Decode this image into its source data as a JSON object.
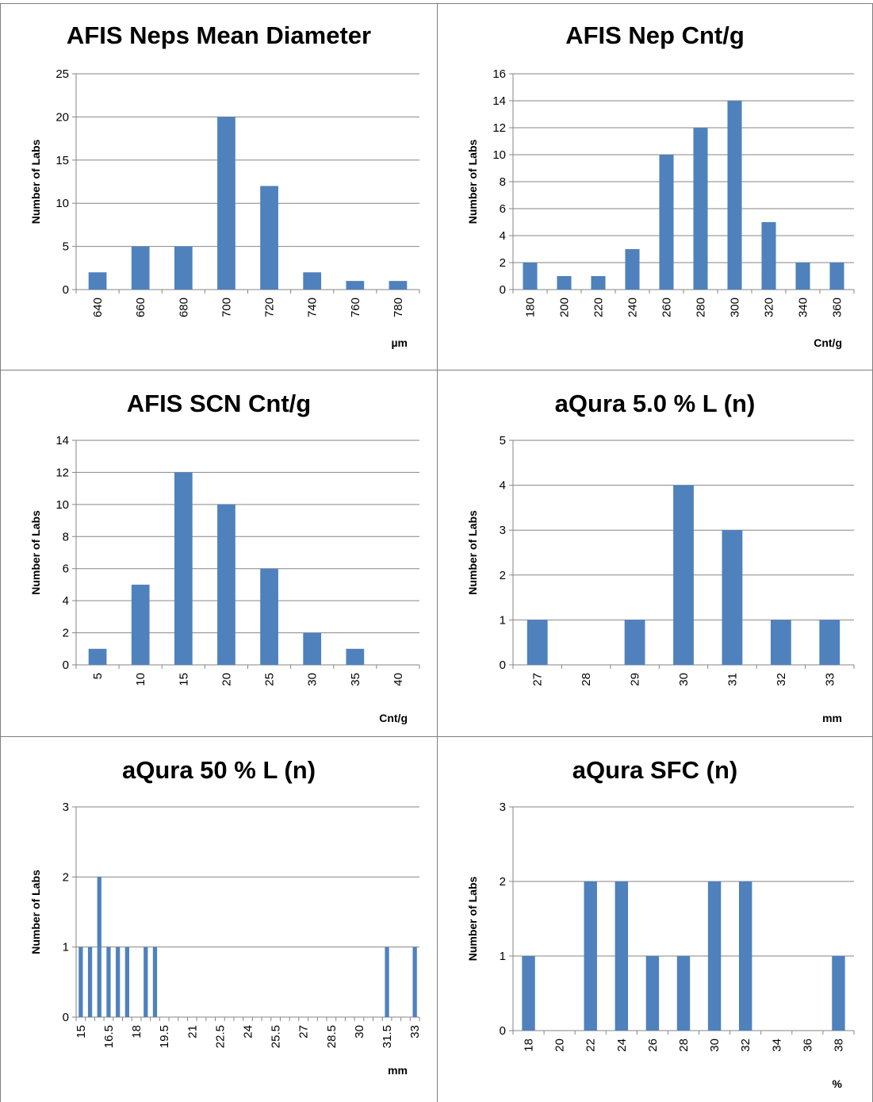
{
  "colors": {
    "bar": "#4f81bd",
    "grid": "#868686",
    "axis": "#868686",
    "frame": "#7f7f7f"
  },
  "chart_data": [
    {
      "type": "bar",
      "title": "AFIS Neps Mean Diameter",
      "ylabel": "Number of Labs",
      "xlabel": "µm",
      "categories": [
        "640",
        "660",
        "680",
        "700",
        "720",
        "740",
        "760",
        "780"
      ],
      "values": [
        2,
        5,
        5,
        20,
        12,
        2,
        1,
        1
      ],
      "ylim": [
        0,
        25
      ],
      "yticks": [
        0,
        5,
        10,
        15,
        20,
        25
      ],
      "grid": true
    },
    {
      "type": "bar",
      "title": "AFIS Nep Cnt/g",
      "ylabel": "Number of Labs",
      "xlabel": "Cnt/g",
      "categories": [
        "180",
        "200",
        "220",
        "240",
        "260",
        "280",
        "300",
        "320",
        "340",
        "360"
      ],
      "values": [
        2,
        1,
        1,
        3,
        10,
        12,
        14,
        5,
        2,
        2
      ],
      "ylim": [
        0,
        16
      ],
      "yticks": [
        0,
        2,
        4,
        6,
        8,
        10,
        12,
        14,
        16
      ],
      "grid": true
    },
    {
      "type": "bar",
      "title": "AFIS SCN Cnt/g",
      "ylabel": "Number of Labs",
      "xlabel": "Cnt/g",
      "categories": [
        "5",
        "10",
        "15",
        "20",
        "25",
        "30",
        "35",
        "40"
      ],
      "values": [
        1,
        5,
        12,
        10,
        6,
        2,
        1,
        0
      ],
      "ylim": [
        0,
        14
      ],
      "yticks": [
        0,
        2,
        4,
        6,
        8,
        10,
        12,
        14
      ],
      "grid": true
    },
    {
      "type": "bar",
      "title": "aQura 5.0 % L (n)",
      "ylabel": "Number of Labs",
      "xlabel": "mm",
      "categories": [
        "27",
        "28",
        "29",
        "30",
        "31",
        "32",
        "33"
      ],
      "values": [
        1,
        0,
        1,
        4,
        3,
        1,
        1
      ],
      "ylim": [
        0,
        5
      ],
      "yticks": [
        0,
        1,
        2,
        3,
        4,
        5
      ],
      "grid": true
    },
    {
      "type": "bar",
      "title": "aQura 50 % L (n)",
      "ylabel": "Number of Labs",
      "xlabel": "mm",
      "categories": [
        "15",
        "15.5",
        "16",
        "16.5",
        "17",
        "17.5",
        "18",
        "18.5",
        "19",
        "19.5",
        "20",
        "20.5",
        "21",
        "21.5",
        "22",
        "22.5",
        "23",
        "23.5",
        "24",
        "24.5",
        "25",
        "25.5",
        "26",
        "26.5",
        "27",
        "27.5",
        "28",
        "28.5",
        "29",
        "29.5",
        "30",
        "30.5",
        "31",
        "31.5",
        "32",
        "32.5",
        "33"
      ],
      "labelEvery": 3,
      "values": [
        1,
        1,
        2,
        1,
        1,
        1,
        0,
        1,
        1,
        0,
        0,
        0,
        0,
        0,
        0,
        0,
        0,
        0,
        0,
        0,
        0,
        0,
        0,
        0,
        0,
        0,
        0,
        0,
        0,
        0,
        0,
        0,
        0,
        1,
        0,
        0,
        1
      ],
      "ylim": [
        0,
        3
      ],
      "yticks": [
        0,
        1,
        2,
        3
      ],
      "grid": true
    },
    {
      "type": "bar",
      "title": "aQura SFC (n)",
      "ylabel": "Number of Labs",
      "xlabel": "%",
      "categories": [
        "18",
        "20",
        "22",
        "24",
        "26",
        "28",
        "30",
        "32",
        "34",
        "36",
        "38"
      ],
      "values": [
        1,
        0,
        2,
        2,
        1,
        1,
        2,
        2,
        0,
        0,
        1
      ],
      "ylim": [
        0,
        3
      ],
      "yticks": [
        0,
        1,
        2,
        3
      ],
      "grid": true
    }
  ]
}
